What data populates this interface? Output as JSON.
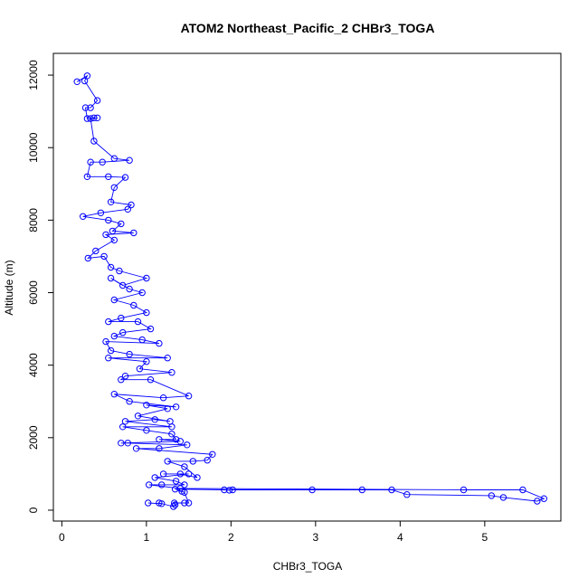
{
  "chart_data": {
    "type": "scatter",
    "title": "ATOM2 Northeast_Pacific_2 CHBr3_TOGA",
    "xlabel": "CHBr3_TOGA",
    "ylabel": "Altitude (m)",
    "xlim": [
      -0.1,
      5.9
    ],
    "ylim": [
      -300,
      12600
    ],
    "x_ticks": [
      0,
      1,
      2,
      3,
      4,
      5
    ],
    "y_ticks": [
      0,
      2000,
      4000,
      6000,
      8000,
      10000,
      12000
    ],
    "color": "#0000ff",
    "marker": "open-circle",
    "connected": true,
    "series": [
      {
        "values": [
          [
            0.18,
            11820
          ],
          [
            0.3,
            11980
          ],
          [
            0.27,
            11840
          ],
          [
            0.42,
            11300
          ],
          [
            0.34,
            11100
          ],
          [
            0.28,
            11100
          ],
          [
            0.3,
            10800
          ],
          [
            0.38,
            10820
          ],
          [
            0.42,
            10820
          ],
          [
            0.34,
            10800
          ],
          [
            0.38,
            10180
          ],
          [
            0.62,
            9700
          ],
          [
            0.8,
            9650
          ],
          [
            0.48,
            9600
          ],
          [
            0.34,
            9600
          ],
          [
            0.3,
            9200
          ],
          [
            0.55,
            9200
          ],
          [
            0.75,
            9180
          ],
          [
            0.62,
            8900
          ],
          [
            0.58,
            8500
          ],
          [
            0.82,
            8420
          ],
          [
            0.78,
            8300
          ],
          [
            0.46,
            8200
          ],
          [
            0.25,
            8100
          ],
          [
            0.55,
            8000
          ],
          [
            0.7,
            7900
          ],
          [
            0.6,
            7700
          ],
          [
            0.85,
            7650
          ],
          [
            0.52,
            7600
          ],
          [
            0.62,
            7450
          ],
          [
            0.4,
            7150
          ],
          [
            0.31,
            6950
          ],
          [
            0.5,
            7000
          ],
          [
            0.58,
            6700
          ],
          [
            0.68,
            6600
          ],
          [
            1.0,
            6400
          ],
          [
            0.72,
            6200
          ],
          [
            0.58,
            6400
          ],
          [
            0.8,
            6100
          ],
          [
            0.95,
            6000
          ],
          [
            0.62,
            5800
          ],
          [
            0.85,
            5650
          ],
          [
            1.0,
            5450
          ],
          [
            0.7,
            5300
          ],
          [
            0.55,
            5200
          ],
          [
            0.9,
            5200
          ],
          [
            1.05,
            5000
          ],
          [
            0.72,
            4900
          ],
          [
            0.62,
            4800
          ],
          [
            0.95,
            4700
          ],
          [
            1.15,
            4600
          ],
          [
            0.52,
            4650
          ],
          [
            0.58,
            4400
          ],
          [
            0.8,
            4300
          ],
          [
            1.25,
            4200
          ],
          [
            0.55,
            4200
          ],
          [
            1.0,
            4100
          ],
          [
            0.92,
            3900
          ],
          [
            1.3,
            3800
          ],
          [
            0.75,
            3700
          ],
          [
            0.7,
            3600
          ],
          [
            1.05,
            3600
          ],
          [
            1.5,
            3150
          ],
          [
            1.2,
            3100
          ],
          [
            0.62,
            3200
          ],
          [
            0.8,
            3000
          ],
          [
            1.35,
            2850
          ],
          [
            1.0,
            2900
          ],
          [
            1.25,
            2800
          ],
          [
            0.9,
            2600
          ],
          [
            1.28,
            2450
          ],
          [
            1.1,
            2500
          ],
          [
            0.75,
            2450
          ],
          [
            1.3,
            2300
          ],
          [
            0.72,
            2300
          ],
          [
            1.0,
            2200
          ],
          [
            1.3,
            2100
          ],
          [
            1.35,
            1950
          ],
          [
            1.15,
            1950
          ],
          [
            1.4,
            1900
          ],
          [
            0.7,
            1850
          ],
          [
            0.78,
            1850
          ],
          [
            1.48,
            1800
          ],
          [
            1.15,
            1700
          ],
          [
            0.88,
            1700
          ],
          [
            1.78,
            1540
          ],
          [
            1.72,
            1380
          ],
          [
            1.55,
            1350
          ],
          [
            1.25,
            1350
          ],
          [
            1.45,
            1200
          ],
          [
            1.6,
            900
          ],
          [
            1.4,
            1000
          ],
          [
            1.2,
            1000
          ],
          [
            1.5,
            1000
          ],
          [
            1.1,
            900
          ],
          [
            1.35,
            800
          ],
          [
            1.45,
            700
          ],
          [
            1.18,
            700
          ],
          [
            1.03,
            700
          ],
          [
            1.4,
            600
          ],
          [
            4.75,
            560
          ],
          [
            5.45,
            560
          ],
          [
            5.7,
            320
          ],
          [
            5.62,
            250
          ],
          [
            5.22,
            350
          ],
          [
            5.08,
            400
          ],
          [
            4.08,
            430
          ],
          [
            3.9,
            560
          ],
          [
            3.55,
            560
          ],
          [
            2.96,
            560
          ],
          [
            2.02,
            560
          ],
          [
            1.98,
            550
          ],
          [
            1.92,
            560
          ],
          [
            1.34,
            580
          ],
          [
            1.42,
            520
          ],
          [
            1.45,
            490
          ],
          [
            1.5,
            200
          ],
          [
            1.45,
            200
          ],
          [
            1.33,
            200
          ],
          [
            1.34,
            150
          ],
          [
            1.32,
            100
          ],
          [
            1.15,
            200
          ],
          [
            1.18,
            180
          ],
          [
            1.02,
            200
          ]
        ]
      }
    ]
  }
}
